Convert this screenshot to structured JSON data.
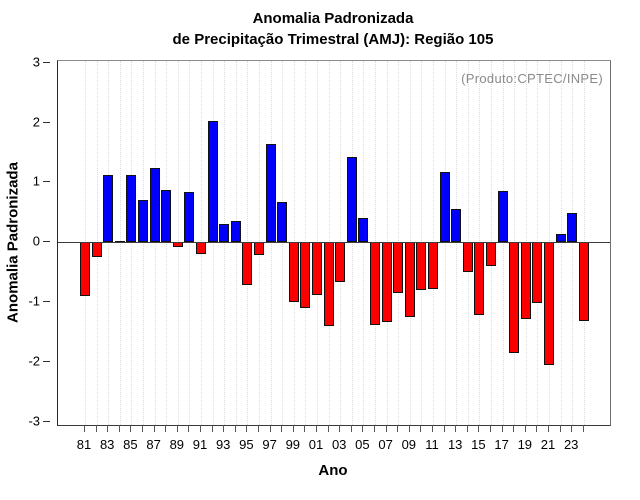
{
  "title": {
    "line1": "Anomalia Padronizada",
    "line2": "de Precipitação Trimestral (AMJ): Região 105"
  },
  "annotation": "(Produto:CPTEC/INPE)",
  "chart_data": {
    "type": "bar",
    "title": "Anomalia Padronizada de Precipitação Trimestral (AMJ): Região 105",
    "xlabel": "Ano",
    "ylabel": "Anomalia Padronizada",
    "ylim": [
      -3,
      3
    ],
    "y_ticks": [
      3,
      2,
      1,
      0,
      -1,
      -2,
      -3
    ],
    "x_tick_labels": [
      "81",
      "83",
      "85",
      "87",
      "89",
      "91",
      "93",
      "95",
      "97",
      "99",
      "01",
      "03",
      "05",
      "07",
      "09",
      "11",
      "13",
      "15",
      "17",
      "19",
      "21",
      "23"
    ],
    "years": [
      1981,
      1982,
      1983,
      1984,
      1985,
      1986,
      1987,
      1988,
      1989,
      1990,
      1991,
      1992,
      1993,
      1994,
      1995,
      1996,
      1997,
      1998,
      1999,
      2000,
      2001,
      2002,
      2003,
      2004,
      2005,
      2006,
      2007,
      2008,
      2009,
      2010,
      2011,
      2012,
      2013,
      2014,
      2015,
      2016,
      2017,
      2018,
      2019,
      2020,
      2021,
      2022,
      2023,
      2024
    ],
    "values": [
      -0.89,
      -0.25,
      1.12,
      0.02,
      1.12,
      0.71,
      1.24,
      0.88,
      -0.08,
      0.84,
      -0.19,
      2.02,
      0.31,
      0.35,
      -0.71,
      -0.21,
      1.64,
      0.67,
      -1.0,
      -1.1,
      -0.88,
      -1.39,
      -0.67,
      1.43,
      0.41,
      -1.38,
      -1.33,
      -0.84,
      -1.24,
      -0.8,
      -0.78,
      1.18,
      0.55,
      -0.5,
      -1.21,
      -0.39,
      0.86,
      -1.85,
      -1.28,
      -1.02,
      -2.05,
      0.14,
      0.49,
      -1.31
    ],
    "positive_color": "#0000fa",
    "negative_color": "#fa0000",
    "bar_outline_color": "#111111",
    "grid": "vertical-dotted-per-year",
    "legend": "none"
  }
}
